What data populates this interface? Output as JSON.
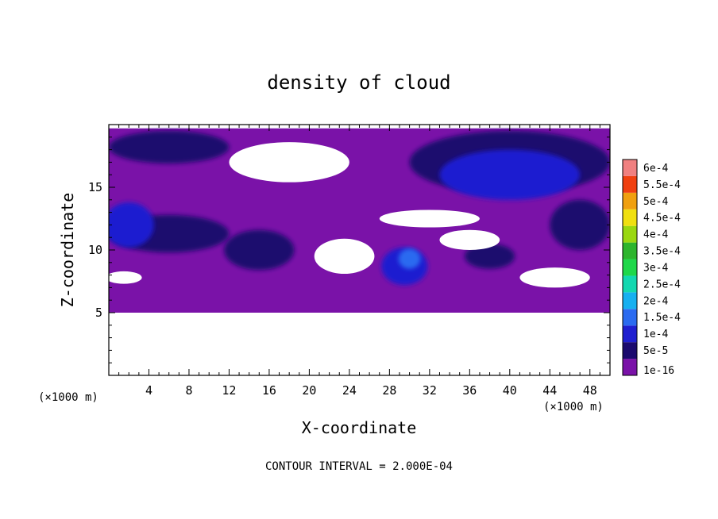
{
  "chart_data": {
    "type": "heatmap",
    "title": "density of cloud",
    "xlabel": "X-coordinate",
    "ylabel": "Z-coordinate",
    "x_unit_label": "(×1000 m)",
    "x_unit_label_right": "(×1000 m)",
    "xlim": [
      0,
      50
    ],
    "ylim": [
      0,
      20
    ],
    "x_ticks": [
      4,
      8,
      12,
      16,
      20,
      24,
      28,
      32,
      36,
      40,
      44,
      48
    ],
    "y_ticks": [
      5,
      10,
      15
    ],
    "colorbar": {
      "labels": [
        "1e-16",
        "5e-5",
        "1e-4",
        "1.5e-4",
        "2e-4",
        "2.5e-4",
        "3e-4",
        "3.5e-4",
        "4e-4",
        "4.5e-4",
        "5e-4",
        "5.5e-4",
        "6e-4"
      ],
      "colors": [
        "#7a12a8",
        "#1b0a6e",
        "#1f1fd0",
        "#2b6bf0",
        "#16b0f0",
        "#13d8b0",
        "#1fd84a",
        "#2db52d",
        "#9ad810",
        "#f0e010",
        "#f0a010",
        "#f04010",
        "#f08080"
      ]
    },
    "contour_interval": "CONTOUR INTERVAL = 2.000E-04",
    "data_extent": {
      "z_min": 5,
      "z_max": 19.7
    },
    "regions": [
      {
        "level": "1e-16",
        "desc": "background",
        "x": [
          0,
          50
        ],
        "z": [
          5,
          19.7
        ]
      },
      {
        "level": "5e-5",
        "x_center": 6,
        "z_center": 18.2,
        "x_radius": 6,
        "z_radius": 1.3
      },
      {
        "level": "5e-5",
        "x_center": 40,
        "z_center": 17,
        "x_radius": 10,
        "z_radius": 2.5
      },
      {
        "level": "1e-4",
        "x_center": 40,
        "z_center": 16,
        "x_radius": 7,
        "z_radius": 2
      },
      {
        "level": "5e-5",
        "x_center": 6,
        "z_center": 11.3,
        "x_radius": 6,
        "z_radius": 1.5
      },
      {
        "level": "1e-4",
        "x_center": 2,
        "z_center": 12,
        "x_radius": 2.5,
        "z_radius": 1.8
      },
      {
        "level": "5e-5",
        "x_center": 15,
        "z_center": 10,
        "x_radius": 3.5,
        "z_radius": 1.6
      },
      {
        "level": "1e-4",
        "x_center": 29.5,
        "z_center": 8.7,
        "x_radius": 2.3,
        "z_radius": 1.5
      },
      {
        "level": "1.5e-4",
        "x_center": 30,
        "z_center": 9.3,
        "x_radius": 1.1,
        "z_radius": 0.8
      },
      {
        "level": "5e-5",
        "x_center": 38,
        "z_center": 9.5,
        "x_radius": 2.5,
        "z_radius": 1
      },
      {
        "level": "5e-5",
        "x_center": 47,
        "z_center": 12,
        "x_radius": 3,
        "z_radius": 2
      }
    ],
    "clear_regions": [
      {
        "x_center": 18,
        "z_center": 17,
        "x_radius": 6,
        "z_radius": 1.6
      },
      {
        "x_center": 32,
        "z_center": 12.5,
        "x_radius": 5,
        "z_radius": 0.7
      },
      {
        "x_center": 36,
        "z_center": 10.8,
        "x_radius": 3,
        "z_radius": 0.8
      },
      {
        "x_center": 23.5,
        "z_center": 9.5,
        "x_radius": 3,
        "z_radius": 1.4
      },
      {
        "x_center": 1.5,
        "z_center": 7.8,
        "x_radius": 1.8,
        "z_radius": 0.5
      },
      {
        "x_center": 44.5,
        "z_center": 7.8,
        "x_radius": 3.5,
        "z_radius": 0.8
      }
    ]
  }
}
